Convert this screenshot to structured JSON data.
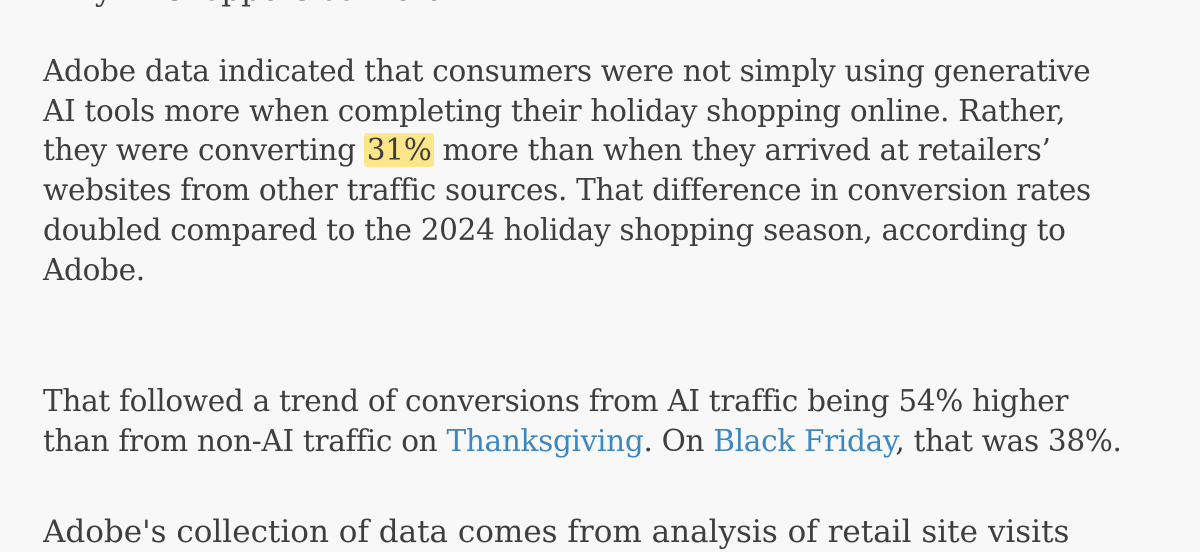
{
  "fragment_top": "Why AI shoppers convert",
  "paragraph_1": {
    "lines": [
      "Adobe data indicated that consumers were not simply using generative",
      "AI tools more when completing their holiday shopping online. Rather,"
    ],
    "line_3_before": "they were converting ",
    "highlight": "31%",
    "line_3_after": " more than when they arrived at retailers’",
    "lines_after": [
      "websites from other traffic sources. That difference in conversion rates",
      "doubled compared to the 2024 holiday shopping season, according to",
      "Adobe."
    ]
  },
  "paragraph_2": {
    "line_1": "That followed a trend of conversions from AI traffic being 54% higher",
    "line_2_before": "than from non-AI traffic on ",
    "link_thanksgiving": "Thanksgiving",
    "line_2_middle": ". On ",
    "link_black_friday": "Black Friday",
    "line_2_after": ", that was 38%."
  },
  "fragment_bottom": "Adobe's collection of data comes from analysis of retail site visits",
  "colors": {
    "background": "#f8f8f8",
    "text": "#3e3e3e",
    "link": "#3d87c0",
    "highlight": "#fde68a"
  }
}
